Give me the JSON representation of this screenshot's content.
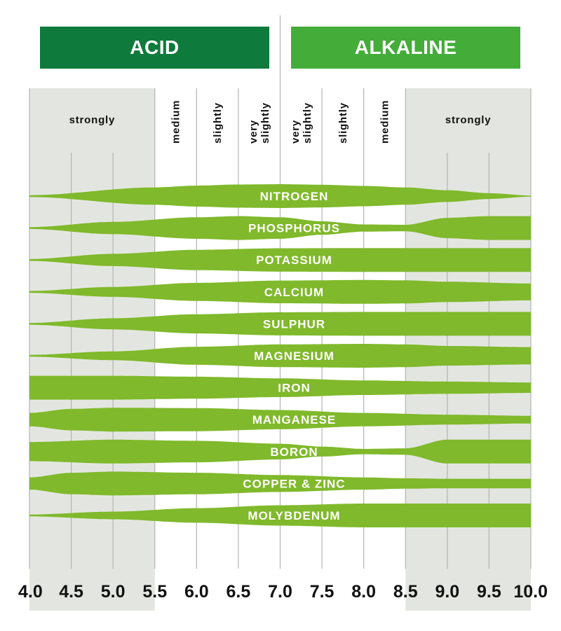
{
  "header": {
    "acid_label": "ACID",
    "alkaline_label": "ALKALINE"
  },
  "colors": {
    "acid": "#0e7a3b",
    "alkaline": "#44ad3a",
    "band": "#80b92b",
    "shade": "#e3e6e0",
    "grid": "#b3b3b3",
    "band_text": "#ffffff"
  },
  "chart_data": {
    "type": "area",
    "title": "",
    "xlabel": "",
    "ylabel": "",
    "xlim": [
      4.0,
      10.0
    ],
    "x_ticks": [
      "4.0",
      "4.5",
      "5.0",
      "5.5",
      "6.0",
      "6.5",
      "7.0",
      "7.5",
      "8.0",
      "8.5",
      "9.0",
      "9.5",
      "10.0"
    ],
    "shaded_ranges": [
      [
        4.0,
        5.5
      ],
      [
        8.5,
        10.0
      ]
    ],
    "zones": [
      {
        "label": "strongly",
        "from": 4.0,
        "to": 5.5
      },
      {
        "label": "medium",
        "from": 5.5,
        "to": 6.0
      },
      {
        "label": "slightly",
        "from": 6.0,
        "to": 6.5
      },
      {
        "label": "very slightly",
        "from": 6.5,
        "to": 7.0
      },
      {
        "label": "very slightly",
        "from": 7.0,
        "to": 7.5
      },
      {
        "label": "slightly",
        "from": 7.5,
        "to": 8.0
      },
      {
        "label": "medium",
        "from": 8.0,
        "to": 8.5
      },
      {
        "label": "strongly",
        "from": 8.5,
        "to": 10.0
      }
    ],
    "nutrients": [
      {
        "name": "NITROGEN",
        "availability": {
          "x": [
            4.0,
            5.5,
            6.0,
            6.5,
            7.0,
            7.5,
            8.0,
            8.5,
            9.0,
            9.5,
            10.0
          ],
          "y": [
            0.05,
            0.72,
            0.88,
            0.97,
            1.0,
            0.95,
            0.85,
            0.72,
            0.48,
            0.22,
            0.02
          ]
        }
      },
      {
        "name": "PHOSPHORUS",
        "availability": {
          "x": [
            4.0,
            5.0,
            6.0,
            6.5,
            7.0,
            7.5,
            8.0,
            8.5,
            9.0,
            9.5,
            10.0
          ],
          "y": [
            0.05,
            0.5,
            0.9,
            1.0,
            0.9,
            0.55,
            0.28,
            0.25,
            0.85,
            1.0,
            1.0
          ]
        }
      },
      {
        "name": "POTASSIUM",
        "availability": {
          "x": [
            4.0,
            5.0,
            6.0,
            7.0,
            8.0,
            9.0,
            10.0
          ],
          "y": [
            0.05,
            0.5,
            0.85,
            0.98,
            1.0,
            1.0,
            1.0
          ]
        }
      },
      {
        "name": "CALCIUM",
        "availability": {
          "x": [
            4.0,
            5.0,
            6.0,
            7.0,
            8.0,
            8.5,
            9.0,
            10.0
          ],
          "y": [
            0.05,
            0.4,
            0.75,
            0.95,
            1.0,
            0.97,
            0.85,
            0.7
          ]
        }
      },
      {
        "name": "SULPHUR",
        "availability": {
          "x": [
            4.0,
            5.0,
            6.0,
            7.0,
            8.0,
            9.0,
            10.0
          ],
          "y": [
            0.05,
            0.45,
            0.8,
            0.97,
            1.0,
            1.0,
            1.0
          ]
        }
      },
      {
        "name": "MAGNESIUM",
        "availability": {
          "x": [
            4.0,
            5.0,
            6.0,
            7.0,
            8.0,
            8.5,
            9.0,
            10.0
          ],
          "y": [
            0.05,
            0.35,
            0.75,
            0.95,
            1.0,
            0.95,
            0.82,
            0.72
          ]
        }
      },
      {
        "name": "IRON",
        "availability": {
          "x": [
            4.0,
            5.0,
            6.0,
            7.0,
            8.0,
            9.0,
            10.0
          ],
          "y": [
            1.0,
            1.0,
            0.92,
            0.78,
            0.6,
            0.5,
            0.42
          ]
        }
      },
      {
        "name": "MANGANESE",
        "availability": {
          "x": [
            4.0,
            4.5,
            5.0,
            6.0,
            7.0,
            8.0,
            9.0,
            10.0
          ],
          "y": [
            0.55,
            0.9,
            1.0,
            0.97,
            0.8,
            0.55,
            0.4,
            0.3
          ]
        }
      },
      {
        "name": "BORON",
        "availability": {
          "x": [
            4.0,
            5.0,
            6.0,
            7.0,
            7.5,
            8.0,
            8.5,
            9.0,
            10.0
          ],
          "y": [
            0.8,
            1.0,
            0.9,
            0.65,
            0.4,
            0.2,
            0.25,
            1.0,
            1.0
          ]
        }
      },
      {
        "name": "COPPER & ZINC",
        "availability": {
          "x": [
            4.0,
            4.5,
            5.0,
            6.0,
            7.0,
            8.0,
            8.5,
            9.0,
            10.0
          ],
          "y": [
            0.5,
            0.9,
            1.0,
            0.9,
            0.7,
            0.5,
            0.42,
            0.38,
            0.38
          ]
        }
      },
      {
        "name": "MOLYBDENUM",
        "availability": {
          "x": [
            4.0,
            5.0,
            6.0,
            7.0,
            8.0,
            9.0,
            10.0
          ],
          "y": [
            0.05,
            0.3,
            0.6,
            0.85,
            1.0,
            1.0,
            1.0
          ]
        }
      }
    ]
  }
}
